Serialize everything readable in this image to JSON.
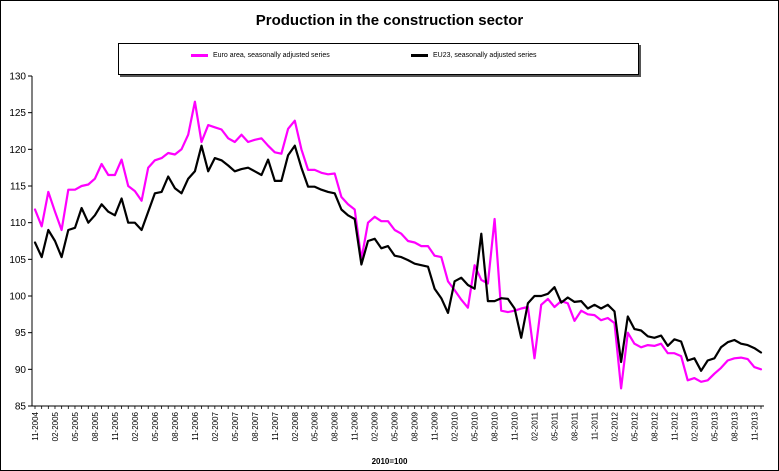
{
  "chart_data": {
    "type": "line",
    "title": "Production in the construction sector",
    "xlabel": "2010=100",
    "ylabel": "",
    "ylim": [
      85,
      130
    ],
    "yticks": [
      85,
      90,
      95,
      100,
      105,
      110,
      115,
      120,
      125,
      130
    ],
    "grid": false,
    "legend_position": "top",
    "xtick_labels": [
      "11-2004",
      "02-2005",
      "05-2005",
      "08-2005",
      "11-2005",
      "02-2006",
      "05-2006",
      "08-2006",
      "11-2006",
      "02-2007",
      "05-2007",
      "08-2007",
      "11-2007",
      "02-2008",
      "05-2008",
      "08-2008",
      "11-2008",
      "02-2009",
      "05-2009",
      "08-2009",
      "11-2009",
      "02-2010",
      "05-2010",
      "08-2010",
      "11-2010",
      "02-2011",
      "05-2011",
      "08-2011",
      "11-2011",
      "02-2012",
      "05-2012",
      "08-2012",
      "11-2012",
      "02-2013",
      "05-2013",
      "08-2013",
      "11-2013"
    ],
    "series": [
      {
        "name": "Euro area, seasonally adjusted series",
        "color": "#ff00ff",
        "values": [
          111.8,
          109.5,
          114.2,
          111.5,
          109.0,
          114.5,
          114.5,
          115.0,
          115.2,
          116.0,
          118.0,
          116.5,
          116.5,
          118.6,
          115.0,
          114.3,
          113.0,
          117.5,
          118.5,
          118.8,
          119.5,
          119.3,
          120.0,
          122.0,
          126.5,
          121.0,
          123.3,
          123.0,
          122.7,
          121.5,
          121.0,
          122.0,
          121.0,
          121.3,
          121.5,
          120.5,
          119.6,
          119.4,
          122.8,
          123.9,
          120.0,
          117.2,
          117.2,
          116.8,
          116.6,
          116.7,
          113.5,
          112.5,
          111.8,
          105.0,
          110.0,
          110.8,
          110.2,
          110.2,
          109.0,
          108.5,
          107.5,
          107.3,
          106.8,
          106.8,
          105.5,
          105.3,
          102.0,
          100.8,
          99.5,
          98.4,
          104.2,
          102.2,
          101.7,
          110.5,
          98.0,
          97.8,
          98.0,
          98.3,
          98.5,
          91.5,
          98.8,
          99.6,
          98.5,
          99.3,
          99.0,
          96.6,
          98.0,
          97.5,
          97.4,
          96.7,
          97.0,
          96.3,
          87.4,
          95.0,
          93.5,
          93.0,
          93.3,
          93.2,
          93.5,
          92.2,
          92.2,
          91.8,
          88.5,
          88.8,
          88.3,
          88.5,
          89.4,
          90.2,
          91.2,
          91.5,
          91.6,
          91.4,
          90.3,
          90.0
        ]
      },
      {
        "name": "EU23, seasonally adjusted series",
        "color": "#000000",
        "values": [
          107.3,
          105.3,
          109.0,
          107.5,
          105.3,
          109.0,
          109.3,
          112.0,
          110.0,
          111.0,
          112.5,
          111.5,
          111.0,
          113.3,
          110.0,
          110.0,
          109.0,
          111.5,
          114.0,
          114.2,
          116.3,
          114.7,
          114.0,
          116.0,
          117.0,
          120.5,
          117.0,
          118.8,
          118.5,
          117.8,
          117.0,
          117.3,
          117.5,
          117.0,
          116.5,
          118.6,
          115.7,
          115.7,
          119.2,
          120.5,
          117.5,
          114.9,
          114.9,
          114.5,
          114.2,
          114.0,
          111.8,
          111.0,
          110.5,
          104.3,
          107.5,
          107.8,
          106.5,
          106.8,
          105.5,
          105.3,
          104.9,
          104.4,
          104.2,
          104.0,
          101.0,
          99.7,
          97.7,
          102.0,
          102.5,
          101.5,
          101.0,
          108.5,
          99.3,
          99.3,
          99.7,
          99.6,
          98.3,
          94.3,
          99.0,
          100.0,
          100.0,
          100.3,
          101.2,
          99.1,
          99.8,
          99.2,
          99.3,
          98.3,
          98.8,
          98.3,
          98.8,
          97.9,
          91.0,
          97.2,
          95.5,
          95.3,
          94.5,
          94.3,
          94.6,
          93.2,
          94.1,
          93.8,
          91.2,
          91.5,
          89.8,
          91.2,
          91.5,
          93.0,
          93.7,
          94.0,
          93.5,
          93.3,
          92.9,
          92.3
        ]
      }
    ]
  }
}
